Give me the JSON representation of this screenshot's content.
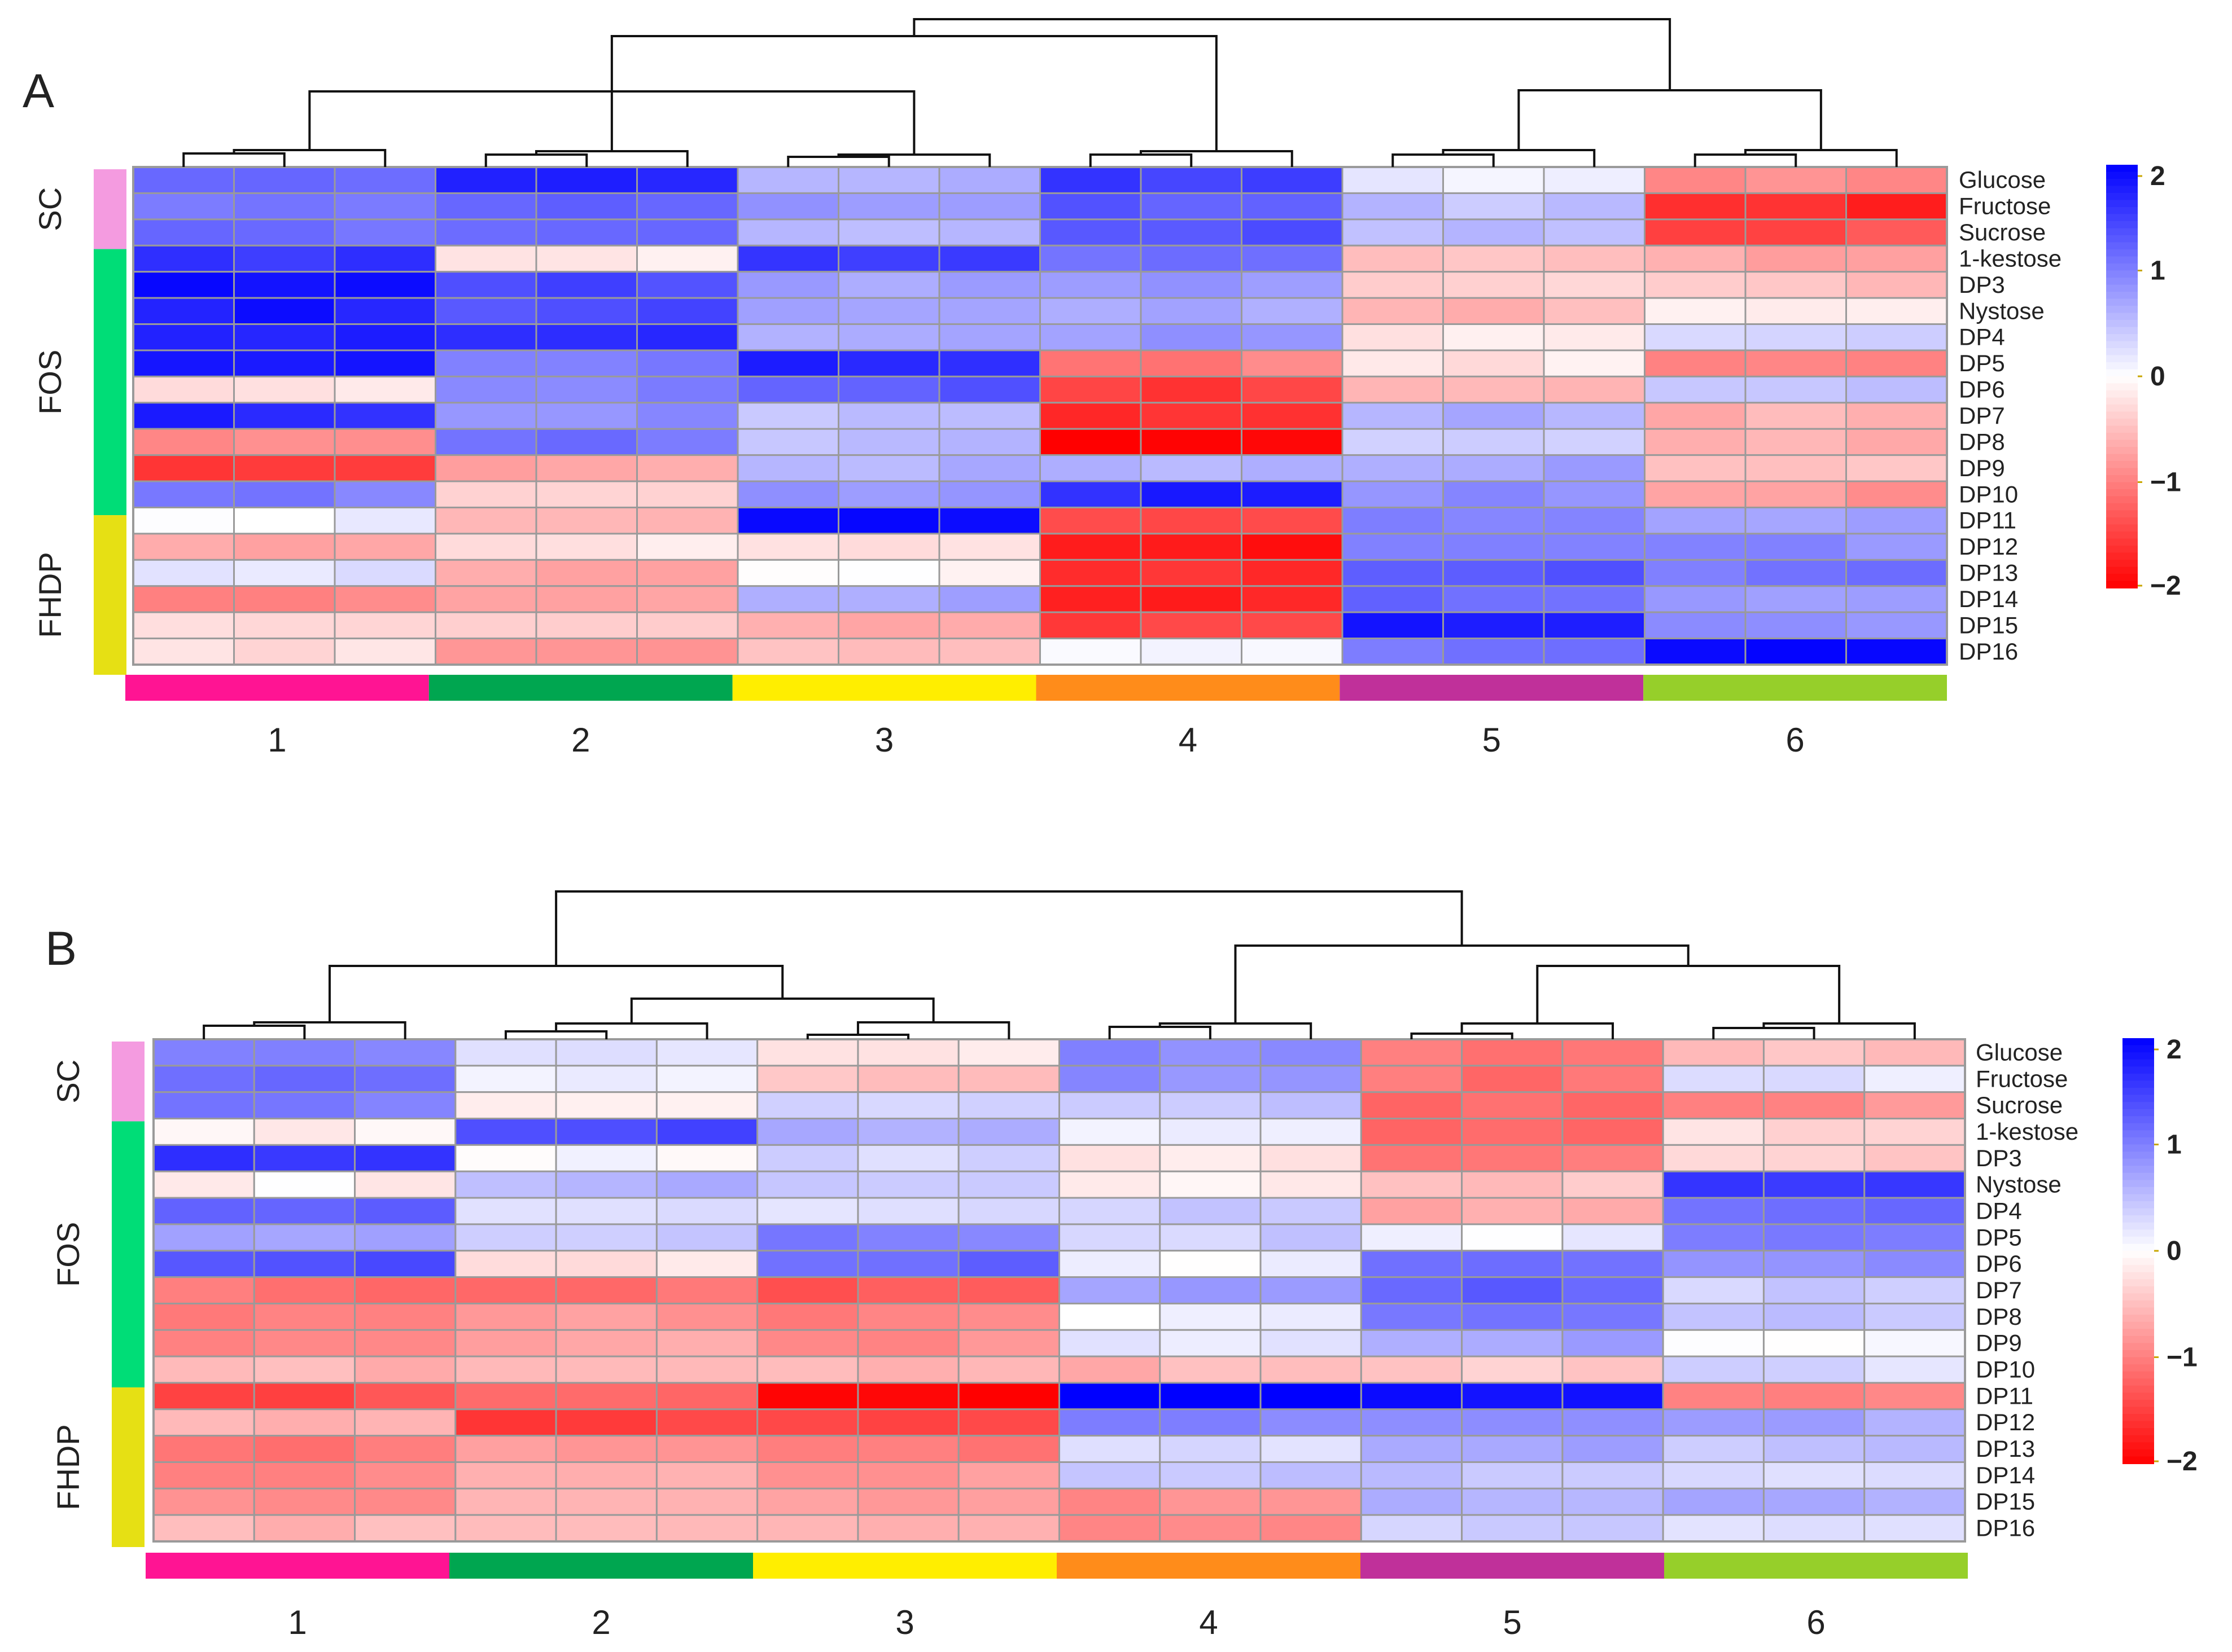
{
  "chart_data": [
    {
      "type": "heatmap",
      "panel": "A",
      "rows": [
        "Glucose",
        "Fructose",
        "Sucrose",
        "1-kestose",
        "DP3",
        "Nystose",
        "DP4",
        "DP5",
        "DP6",
        "DP7",
        "DP8",
        "DP9",
        "DP10",
        "DP11",
        "DP12",
        "DP13",
        "DP14",
        "DP15",
        "DP16"
      ],
      "row_groups": [
        {
          "name": "SC",
          "color": "#f49be0",
          "from": 0,
          "to": 2
        },
        {
          "name": "FOS",
          "color": "#00dd77",
          "from": 3,
          "to": 12
        },
        {
          "name": "FHDP",
          "color": "#e6e014",
          "from": 13,
          "to": 18
        }
      ],
      "columns": [
        "1",
        "2",
        "3",
        "4",
        "5",
        "6"
      ],
      "column_colors": [
        "#ff1493",
        "#00a650",
        "#ffee00",
        "#ff8c1a",
        "#c0309a",
        "#96cf2a"
      ],
      "reps": 3,
      "color_scale": {
        "min": -2,
        "max": 2,
        "ticks": [
          "2",
          "1",
          "0",
          "−1",
          "−2"
        ],
        "low": "#ff0000",
        "mid": "#ffffff",
        "high": "#0000ff"
      },
      "values": [
        [
          1.2,
          1.8,
          0.6,
          1.5,
          0.1,
          -0.9
        ],
        [
          1.0,
          1.3,
          0.8,
          1.3,
          0.5,
          -1.7
        ],
        [
          1.1,
          1.2,
          0.6,
          1.4,
          0.5,
          -1.4
        ],
        [
          1.6,
          -0.2,
          1.5,
          1.1,
          -0.5,
          -0.7
        ],
        [
          1.9,
          1.4,
          0.7,
          0.8,
          -0.4,
          -0.5
        ],
        [
          1.8,
          1.4,
          0.8,
          0.7,
          -0.6,
          -0.1
        ],
        [
          1.7,
          1.6,
          0.7,
          0.8,
          -0.2,
          0.4
        ],
        [
          1.8,
          1.0,
          1.7,
          -1.0,
          -0.2,
          -0.9
        ],
        [
          -0.2,
          1.0,
          1.3,
          -1.5,
          -0.5,
          0.5
        ],
        [
          1.7,
          0.9,
          0.5,
          -1.6,
          0.6,
          -0.6
        ],
        [
          -0.9,
          1.1,
          0.5,
          -2.0,
          0.3,
          -0.6
        ],
        [
          -1.5,
          -0.7,
          0.6,
          0.6,
          0.7,
          -0.5
        ],
        [
          1.0,
          -0.3,
          0.8,
          1.7,
          0.9,
          -0.8
        ],
        [
          0.1,
          -0.6,
          1.9,
          -1.5,
          1.0,
          0.8
        ],
        [
          -0.7,
          -0.2,
          -0.3,
          -1.8,
          0.9,
          0.9
        ],
        [
          0.2,
          -0.7,
          0.0,
          -1.6,
          1.3,
          1.1
        ],
        [
          -0.9,
          -0.8,
          0.7,
          -1.7,
          1.2,
          0.7
        ],
        [
          -0.3,
          -0.4,
          -0.6,
          -1.5,
          1.8,
          0.9
        ],
        [
          -0.3,
          -0.8,
          -0.5,
          0.1,
          1.1,
          2.0
        ]
      ]
    },
    {
      "type": "heatmap",
      "panel": "B",
      "rows": [
        "Glucose",
        "Fructose",
        "Sucrose",
        "1-kestose",
        "DP3",
        "Nystose",
        "DP4",
        "DP5",
        "DP6",
        "DP7",
        "DP8",
        "DP9",
        "DP10",
        "DP11",
        "DP12",
        "DP13",
        "DP14",
        "DP15",
        "DP16"
      ],
      "row_groups": [
        {
          "name": "SC",
          "color": "#f49be0",
          "from": 0,
          "to": 2
        },
        {
          "name": "FOS",
          "color": "#00dd77",
          "from": 3,
          "to": 12
        },
        {
          "name": "FHDP",
          "color": "#e6e014",
          "from": 13,
          "to": 18
        }
      ],
      "columns": [
        "1",
        "2",
        "3",
        "4",
        "5",
        "6"
      ],
      "column_colors": [
        "#ff1493",
        "#00a650",
        "#ffee00",
        "#ff8c1a",
        "#c0309a",
        "#96cf2a"
      ],
      "reps": 3,
      "color_scale": {
        "min": -2,
        "max": 2,
        "ticks": [
          "2",
          "1",
          "0",
          "−1",
          "−2"
        ],
        "low": "#ff0000",
        "mid": "#ffffff",
        "high": "#0000ff"
      },
      "values": [
        [
          1.0,
          0.3,
          -0.2,
          0.9,
          -1.1,
          -0.5
        ],
        [
          1.1,
          0.2,
          -0.5,
          0.9,
          -1.1,
          0.2
        ],
        [
          1.0,
          -0.1,
          0.4,
          0.5,
          -1.2,
          -0.9
        ],
        [
          -0.1,
          1.4,
          0.6,
          0.1,
          -1.2,
          -0.3
        ],
        [
          1.6,
          0.0,
          0.3,
          -0.2,
          -1.1,
          -0.4
        ],
        [
          -0.1,
          0.6,
          0.5,
          -0.1,
          -0.5,
          1.6
        ],
        [
          1.2,
          0.2,
          0.3,
          0.4,
          -0.7,
          1.2
        ],
        [
          0.7,
          0.4,
          1.0,
          0.4,
          0.1,
          1.1
        ],
        [
          1.4,
          -0.2,
          1.2,
          0.1,
          1.2,
          0.9
        ],
        [
          -1.1,
          -1.1,
          -1.3,
          0.8,
          1.2,
          0.4
        ],
        [
          -1.0,
          -0.8,
          -1.0,
          0.1,
          1.0,
          0.5
        ],
        [
          -0.9,
          -0.7,
          -0.9,
          0.2,
          0.7,
          0.0
        ],
        [
          -0.6,
          -0.5,
          -0.6,
          -0.6,
          -0.4,
          0.3
        ],
        [
          -1.4,
          -1.2,
          -2.0,
          2.0,
          1.9,
          -0.9
        ],
        [
          -0.6,
          -1.5,
          -1.5,
          1.0,
          0.8,
          0.7
        ],
        [
          -1.1,
          -0.8,
          -1.0,
          0.3,
          0.7,
          0.5
        ],
        [
          -0.9,
          -0.7,
          -0.8,
          0.5,
          0.5,
          0.2
        ],
        [
          -0.9,
          -0.6,
          -0.7,
          -0.9,
          0.6,
          0.7
        ],
        [
          -0.6,
          -0.5,
          -0.6,
          -0.9,
          0.4,
          0.3
        ]
      ]
    }
  ]
}
